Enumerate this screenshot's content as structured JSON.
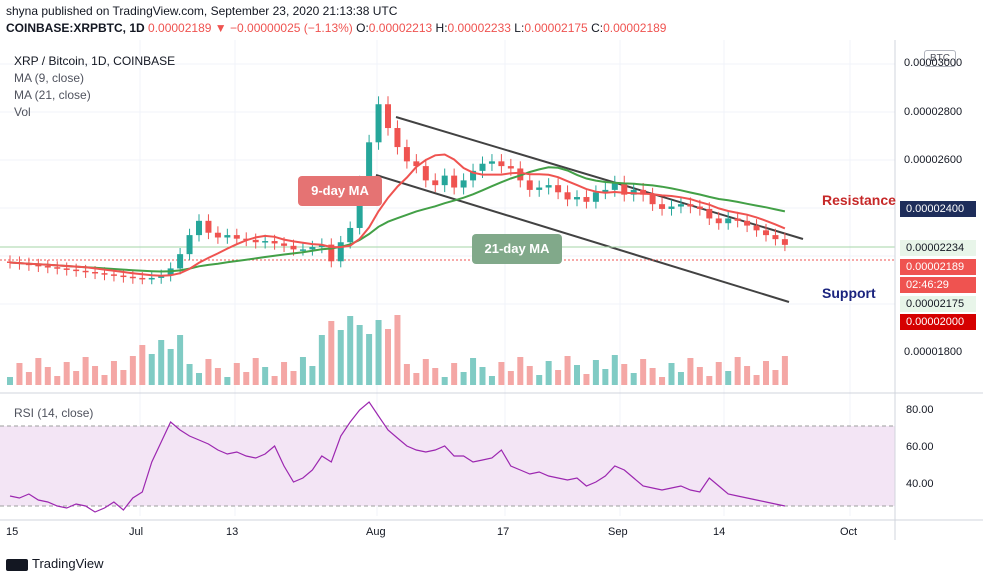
{
  "header": {
    "published": "shyna published on TradingView.com, September 23, 2020 21:13:38 UTC",
    "symbol": "COINBASE:XRPBTC, 1D",
    "last": "0.00002189",
    "change_arrow": "▼",
    "change": "−0.00000025 (−1.13%)",
    "o_label": "O:",
    "o": "0.00002213",
    "h_label": "H:",
    "h": "0.00002233",
    "l_label": "L:",
    "l": "0.00002175",
    "c_label": "C:",
    "c": "0.00002189"
  },
  "legend": {
    "title": "XRP / Bitcoin, 1D, COINBASE",
    "ma9": "MA (9, close)",
    "ma21": "MA (21, close)",
    "vol": "Vol"
  },
  "axis_badge": "BTC",
  "price_axis": {
    "ticks": [
      {
        "v": "0.00003000",
        "y": 64
      },
      {
        "v": "0.00002800",
        "y": 112
      },
      {
        "v": "0.00002600",
        "y": 160
      },
      {
        "v": "0.00001800",
        "y": 352
      }
    ],
    "badges": [
      {
        "v": "0.00002400",
        "color": "#1e2d5a",
        "text": "#ffffff"
      },
      {
        "v": "0.00002234",
        "color": "#e8f5e9",
        "text": "#131722"
      },
      {
        "v": "0.00002189",
        "color": "#ef5350",
        "text": "#ffffff"
      },
      {
        "v": "02:46:29",
        "color": "#ef5350",
        "text": "#ffffff"
      },
      {
        "v": "0.00002175",
        "color": "#e8f5e9",
        "text": "#131722"
      },
      {
        "v": "0.00002000",
        "color": "#d50000",
        "text": "#ffffff"
      }
    ]
  },
  "annotations": {
    "resistance": "Resistance",
    "support": "Support",
    "ma9_callout": "9-day MA",
    "ma21_callout": "21-day MA"
  },
  "time_axis": [
    "15",
    "Jul",
    "13",
    "Aug",
    "17",
    "Sep",
    "14",
    "Oct"
  ],
  "rsi": {
    "label": "RSI (14, close)",
    "ticks": [
      "80.00",
      "60.00",
      "40.00"
    ]
  },
  "footer": "TradingView",
  "colors": {
    "up": "#26a69a",
    "down": "#ef5350",
    "ma9": "#ef5350",
    "ma21": "#43a047",
    "rsi": "#9c27b0",
    "resistance": "#c62828",
    "support": "#1a237e"
  },
  "chart_data": {
    "type": "candlestick",
    "series": [
      {
        "name": "XRP / Bitcoin",
        "values_close": [
          2.115e-05,
          2.11e-05,
          2.105e-05,
          2.1e-05,
          2.095e-05,
          2.09e-05,
          2.085e-05,
          2.08e-05,
          2.075e-05,
          2.07e-05,
          2.065e-05,
          2.06e-05,
          2.055e-05,
          2.05e-05,
          2.048e-05,
          2.05e-05,
          2.06e-05,
          2.09e-05,
          2.15e-05,
          2.23e-05,
          2.29e-05,
          2.24e-05,
          2.22e-05,
          2.23e-05,
          2.215e-05,
          2.21e-05,
          2.2e-05,
          2.205e-05,
          2.195e-05,
          2.185e-05,
          2.17e-05,
          2.17e-05,
          2.18e-05,
          2.19e-05,
          2.12e-05,
          2.2e-05,
          2.26e-05,
          2.45e-05,
          2.62e-05,
          2.78e-05,
          2.68e-05,
          2.6e-05,
          2.54e-05,
          2.52e-05,
          2.46e-05,
          2.44e-05,
          2.48e-05,
          2.43e-05,
          2.46e-05,
          2.5e-05,
          2.53e-05,
          2.54e-05,
          2.52e-05,
          2.51e-05,
          2.46e-05,
          2.42e-05,
          2.43e-05,
          2.44e-05,
          2.41e-05,
          2.38e-05,
          2.39e-05,
          2.37e-05,
          2.41e-05,
          2.42e-05,
          2.45e-05,
          2.4e-05,
          2.42e-05,
          2.4e-05,
          2.36e-05,
          2.34e-05,
          2.35e-05,
          2.36e-05,
          2.35e-05,
          2.34e-05,
          2.3e-05,
          2.28e-05,
          2.3e-05,
          2.29e-05,
          2.27e-05,
          2.25e-05,
          2.23e-05,
          2.213e-05,
          2.189e-05
        ]
      },
      {
        "name": "MA (9, close)"
      },
      {
        "name": "MA (21, close)"
      },
      {
        "name": "RSI (14, close)",
        "values": [
          35,
          34,
          36,
          33,
          32,
          30,
          29,
          31,
          30,
          27,
          29,
          32,
          28,
          34,
          37,
          52,
          62,
          72,
          68,
          65,
          63,
          61,
          58,
          56,
          57,
          55,
          54,
          56,
          60,
          50,
          42,
          44,
          48,
          55,
          52,
          65,
          72,
          78,
          82,
          75,
          68,
          64,
          60,
          58,
          57,
          58,
          60,
          55,
          55,
          52,
          53,
          54,
          58,
          50,
          48,
          46,
          47,
          45,
          44,
          43,
          44,
          40,
          42,
          45,
          50,
          48,
          44,
          40,
          39,
          38,
          39,
          40,
          38,
          37,
          44,
          40,
          36,
          35,
          34,
          33,
          32,
          31,
          30
        ]
      }
    ],
    "price_range": [
      1.6e-05,
      3.05e-05
    ],
    "rsi_range": [
      25,
      85
    ],
    "rsi_bands": [
      70,
      30
    ],
    "xlabel": "",
    "ylabel": "",
    "grid": true
  }
}
